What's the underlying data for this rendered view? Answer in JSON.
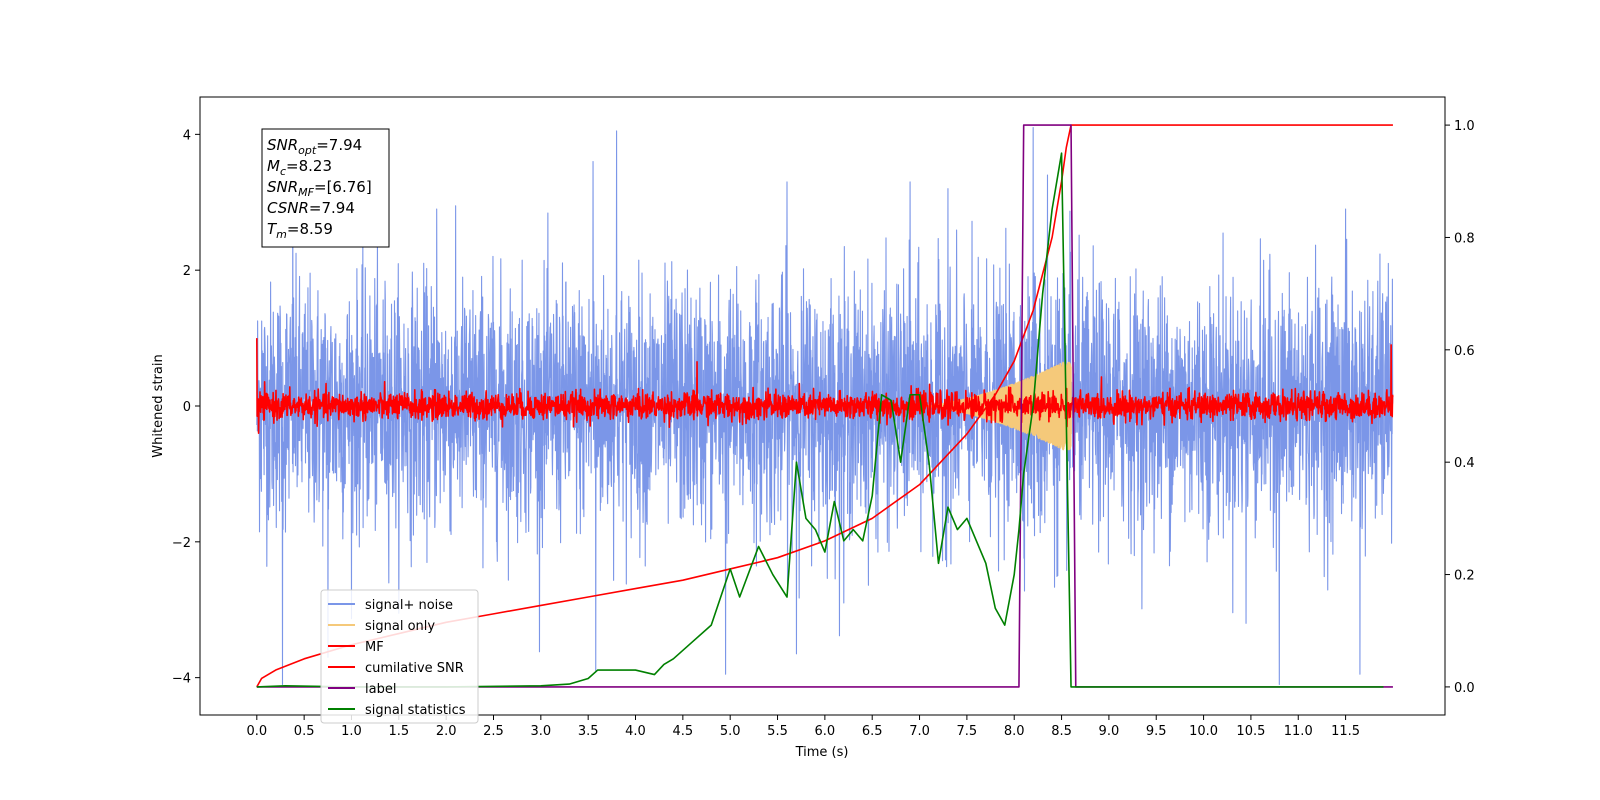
{
  "chart_data": {
    "type": "line",
    "title": "",
    "xlabel": "Time (s)",
    "ylabel": "Whitened strain",
    "xlim": [
      -0.6,
      12.55
    ],
    "ylim": [
      -4.55,
      4.55
    ],
    "ylim_right": [
      -0.05,
      1.05
    ],
    "grid": false,
    "legend_position": "lower-left",
    "x_ticks": [
      "0.0",
      "0.5",
      "1.0",
      "1.5",
      "2.0",
      "2.5",
      "3.0",
      "3.5",
      "4.0",
      "4.5",
      "5.0",
      "5.5",
      "6.0",
      "6.5",
      "7.0",
      "7.5",
      "8.0",
      "8.5",
      "9.0",
      "9.5",
      "10.0",
      "10.5",
      "11.0",
      "11.5"
    ],
    "y_ticks_left": [
      "-4",
      "-2",
      "0",
      "2",
      "4"
    ],
    "y_ticks_right": [
      "0.0",
      "0.2",
      "0.4",
      "0.6",
      "0.8",
      "1.0"
    ],
    "annotation": {
      "lines": [
        {
          "base": "SNR",
          "sub": "opt",
          "rest": "=7.94"
        },
        {
          "base": "M",
          "sub": "c",
          "rest": "=8.23"
        },
        {
          "base": "SNR",
          "sub": "MF",
          "rest": "=[6.76]"
        },
        {
          "base": "CSNR",
          "sub": "",
          "rest": "=7.94"
        },
        {
          "base": "T",
          "sub": "m",
          "rest": "=8.59"
        }
      ]
    },
    "series": [
      {
        "name": "signal+ noise",
        "axis": "left",
        "color": "#7b96e8",
        "kind": "noise",
        "x_range": [
          0,
          12
        ],
        "amplitude_std": 0.9,
        "extrema": [
          [
            0.05,
            1.25
          ],
          [
            0.27,
            -4.1
          ],
          [
            0.38,
            3.3
          ],
          [
            0.75,
            -3.7
          ],
          [
            1.9,
            2.9
          ],
          [
            3.55,
            3.6
          ],
          [
            3.58,
            -3.9
          ],
          [
            3.8,
            4.05
          ],
          [
            4.95,
            -3.95
          ],
          [
            5.6,
            3.3
          ],
          [
            5.7,
            -3.65
          ],
          [
            6.2,
            -2.9
          ],
          [
            6.9,
            3.3
          ],
          [
            7.3,
            3.2
          ],
          [
            8.2,
            4.1
          ],
          [
            8.35,
            3.4
          ],
          [
            10.45,
            -3.2
          ],
          [
            10.8,
            -4.1
          ],
          [
            11.5,
            2.9
          ],
          [
            11.65,
            -3.95
          ],
          [
            11.95,
            2.1
          ]
        ]
      },
      {
        "name": "signal only",
        "axis": "left",
        "color": "#f5c97a",
        "kind": "chirp",
        "x_range": [
          7.0,
          8.6
        ],
        "peak_amplitude": 0.7
      },
      {
        "name": "MF",
        "axis": "left",
        "color": "#ff0000",
        "kind": "noise",
        "x_range": [
          0,
          12
        ],
        "amplitude_std": 0.1,
        "extrema": [
          [
            0.0,
            1.0
          ],
          [
            0.02,
            -0.4
          ],
          [
            4.65,
            0.65
          ],
          [
            11.98,
            0.9
          ]
        ]
      },
      {
        "name": "cumilative SNR",
        "axis": "right",
        "color": "#ff0000",
        "kind": "line",
        "x": [
          0.0,
          0.05,
          0.2,
          0.5,
          1.0,
          1.5,
          2.0,
          2.5,
          3.0,
          3.5,
          4.0,
          4.5,
          5.0,
          5.5,
          6.0,
          6.5,
          7.0,
          7.5,
          7.8,
          8.0,
          8.2,
          8.4,
          8.5,
          8.55,
          8.6,
          12.0
        ],
        "y": [
          0.0,
          0.015,
          0.03,
          0.05,
          0.075,
          0.095,
          0.115,
          0.13,
          0.145,
          0.16,
          0.175,
          0.19,
          0.21,
          0.23,
          0.26,
          0.3,
          0.36,
          0.45,
          0.52,
          0.58,
          0.67,
          0.8,
          0.9,
          0.96,
          1.0,
          1.0
        ]
      },
      {
        "name": "label",
        "axis": "right",
        "color": "#800080",
        "kind": "line",
        "x": [
          0.0,
          8.05,
          8.1,
          8.6,
          8.65,
          12.0
        ],
        "y": [
          0.0,
          0.0,
          1.0,
          1.0,
          0.0,
          0.0
        ]
      },
      {
        "name": "signal statistics",
        "axis": "right",
        "color": "#008000",
        "kind": "line",
        "x": [
          0.0,
          0.3,
          1.0,
          2.0,
          3.0,
          3.3,
          3.5,
          3.6,
          3.8,
          4.0,
          4.2,
          4.3,
          4.4,
          4.6,
          4.8,
          5.0,
          5.1,
          5.3,
          5.45,
          5.6,
          5.7,
          5.8,
          5.9,
          6.0,
          6.1,
          6.2,
          6.3,
          6.4,
          6.5,
          6.6,
          6.7,
          6.8,
          6.9,
          7.0,
          7.1,
          7.2,
          7.3,
          7.4,
          7.5,
          7.7,
          7.8,
          7.9,
          8.0,
          8.05,
          8.1,
          8.2,
          8.3,
          8.4,
          8.5,
          8.6,
          9.0,
          10.0,
          11.0,
          11.9
        ],
        "y": [
          0.0,
          0.002,
          0.0,
          0.0,
          0.002,
          0.005,
          0.015,
          0.03,
          0.03,
          0.03,
          0.022,
          0.04,
          0.05,
          0.08,
          0.11,
          0.21,
          0.16,
          0.25,
          0.2,
          0.16,
          0.4,
          0.3,
          0.28,
          0.24,
          0.33,
          0.26,
          0.28,
          0.26,
          0.34,
          0.52,
          0.51,
          0.4,
          0.52,
          0.52,
          0.4,
          0.22,
          0.32,
          0.28,
          0.3,
          0.22,
          0.14,
          0.11,
          0.2,
          0.28,
          0.38,
          0.5,
          0.7,
          0.85,
          0.95,
          0.0,
          0.0,
          0.0,
          0.0,
          0.0
        ]
      }
    ]
  }
}
